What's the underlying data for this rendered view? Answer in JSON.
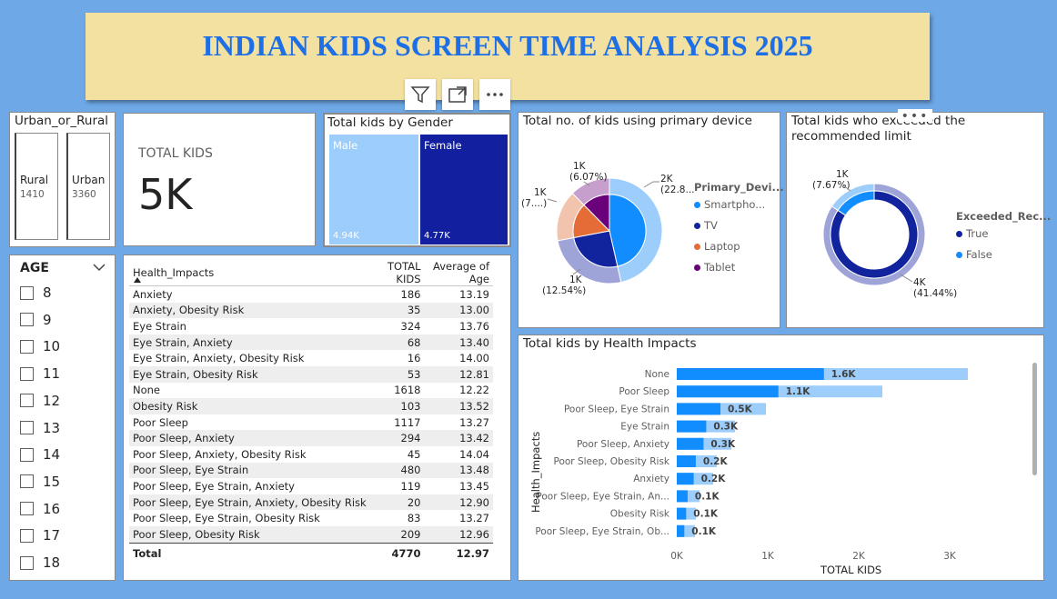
{
  "header": {
    "title": "INDIAN KIDS SCREEN TIME ANALYSIS 2025",
    "actions": [
      {
        "name": "filter-icon"
      },
      {
        "name": "focus-mode-icon"
      },
      {
        "name": "more-options-icon"
      }
    ]
  },
  "urban_rural": {
    "title": "Urban_or_Rural",
    "items": [
      {
        "label": "Rural",
        "value": "1410"
      },
      {
        "label": "Urban",
        "value": "3360"
      }
    ]
  },
  "total_kids": {
    "label": "TOTAL KIDS",
    "value": "5K"
  },
  "gender": {
    "title": "Total kids by Gender",
    "items": [
      {
        "label": "Male",
        "value": "4.94K",
        "color": "#9dcdfb"
      },
      {
        "label": "Female",
        "value": "4.77K",
        "color": "#1220a0"
      }
    ]
  },
  "age": {
    "title": "AGE",
    "options": [
      "8",
      "9",
      "10",
      "11",
      "12",
      "13",
      "14",
      "15",
      "16",
      "17",
      "18"
    ]
  },
  "health_table": {
    "columns": [
      "Health_Impacts",
      "TOTAL KIDS",
      "Average of Age"
    ],
    "rows": [
      [
        "Anxiety",
        "186",
        "13.19"
      ],
      [
        "Anxiety, Obesity Risk",
        "35",
        "13.00"
      ],
      [
        "Eye Strain",
        "324",
        "13.76"
      ],
      [
        "Eye Strain, Anxiety",
        "68",
        "13.40"
      ],
      [
        "Eye Strain, Anxiety, Obesity Risk",
        "16",
        "14.00"
      ],
      [
        "Eye Strain, Obesity Risk",
        "53",
        "12.81"
      ],
      [
        "None",
        "1618",
        "12.22"
      ],
      [
        "Obesity Risk",
        "103",
        "13.52"
      ],
      [
        "Poor Sleep",
        "1117",
        "13.27"
      ],
      [
        "Poor Sleep, Anxiety",
        "294",
        "13.42"
      ],
      [
        "Poor Sleep, Anxiety, Obesity Risk",
        "45",
        "14.04"
      ],
      [
        "Poor Sleep, Eye Strain",
        "480",
        "13.48"
      ],
      [
        "Poor Sleep, Eye Strain, Anxiety",
        "119",
        "13.45"
      ],
      [
        "Poor Sleep, Eye Strain, Anxiety, Obesity Risk",
        "20",
        "12.90"
      ],
      [
        "Poor Sleep, Eye Strain, Obesity Risk",
        "83",
        "13.27"
      ],
      [
        "Poor Sleep, Obesity Risk",
        "209",
        "12.96"
      ]
    ],
    "total": [
      "Total",
      "4770",
      "12.97"
    ]
  },
  "device": {
    "title": "Total no. of kids using primary device",
    "legend_title": "Primary_Devi...",
    "legend": [
      {
        "label": "Smartpho...",
        "color": "#118dff"
      },
      {
        "label": "TV",
        "color": "#12239e"
      },
      {
        "label": "Laptop",
        "color": "#e66c37"
      },
      {
        "label": "Tablet",
        "color": "#6b007b"
      }
    ],
    "labels": [
      {
        "text1": "2K",
        "text2": "(22.8..."
      },
      {
        "text1": "1K",
        "text2": "(12.54%)"
      },
      {
        "text1": "1K",
        "text2": "(7....)"
      },
      {
        "text1": "1K",
        "text2": "(6.07%)"
      }
    ]
  },
  "exceeded": {
    "title_line1": "Total kids who exceeded the",
    "title_line2": "recommended limit",
    "legend_title": "Exceeded_Rec...",
    "legend": [
      {
        "label": "True",
        "color": "#12239e"
      },
      {
        "label": "False",
        "color": "#118dff"
      }
    ],
    "labels": [
      {
        "text1": "1K",
        "text2": "(7.67%)"
      },
      {
        "text1": "4K",
        "text2": "(41.44%)"
      }
    ]
  },
  "health_chart": {
    "title": "Total kids by Health Impacts",
    "xlabel": "TOTAL KIDS",
    "ylabel": "Health_Impacts",
    "xticks": [
      "0K",
      "1K",
      "2K",
      "3K"
    ]
  },
  "chart_data": [
    {
      "type": "bar",
      "orientation": "horizontal",
      "title": "Total kids by Health Impacts",
      "xlabel": "TOTAL KIDS",
      "ylabel": "Health_Impacts",
      "xlim": [
        0,
        3400
      ],
      "categories": [
        "None",
        "Poor Sleep",
        "Poor Sleep, Eye Strain",
        "Eye Strain",
        "Poor Sleep, Anxiety",
        "Poor Sleep, Obesity Risk",
        "Anxiety",
        "Poor Sleep, Eye Strain, An...",
        "Obesity Risk",
        "Poor Sleep, Eye Strain, Ob..."
      ],
      "series": [
        {
          "values": [
            1618,
            1117,
            480,
            324,
            294,
            209,
            186,
            119,
            103,
            83
          ],
          "color": "#118dff"
        },
        {
          "values": [
            3200,
            2260,
            980,
            640,
            600,
            440,
            400,
            250,
            210,
            200
          ],
          "color": "#9dcdfb"
        }
      ],
      "data_labels": [
        "1.6K",
        "1.1K",
        "0.5K",
        "0.3K",
        "0.3K",
        "0.2K",
        "0.2K",
        "0.1K",
        "0.1K",
        "0.1K"
      ]
    },
    {
      "type": "pie",
      "title": "Total no. of kids using primary device",
      "categories": [
        "Smartphone",
        "TV",
        "Laptop",
        "Tablet"
      ],
      "values": [
        2280,
        1254,
        767,
        607
      ]
    },
    {
      "type": "pie",
      "title": "Total kids who exceeded the recommended limit",
      "categories": [
        "True",
        "False"
      ],
      "values": [
        4144,
        767
      ]
    }
  ]
}
